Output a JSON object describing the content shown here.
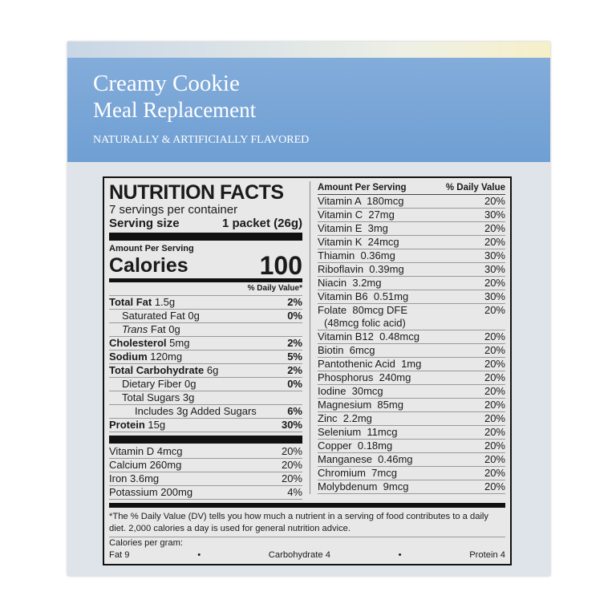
{
  "brand": {
    "line1": "Creamy Cookie",
    "line2": "Meal Replacement",
    "flavor": "NATURALLY & ARTIFICIALLY FLAVORED"
  },
  "facts": {
    "title": "NUTRITION FACTS",
    "servings": "7 servings per container",
    "serving_label": "Serving size",
    "serving_value": "1 packet (26g)",
    "amount_per_serving": "Amount Per Serving",
    "calories_label": "Calories",
    "calories_value": "100",
    "dv_header": "% Daily Value*",
    "rows": [
      {
        "label": "Total Fat",
        "amount": "1.5g",
        "dv": "2%",
        "bold": true,
        "indent": 0
      },
      {
        "label": "Saturated Fat",
        "amount": "0g",
        "dv": "0%",
        "bold": false,
        "indent": 1
      },
      {
        "label": "Trans Fat",
        "amount": "0g",
        "dv": "",
        "bold": false,
        "indent": 1
      },
      {
        "label": "Cholesterol",
        "amount": "5mg",
        "dv": "2%",
        "bold": true,
        "indent": 0
      },
      {
        "label": "Sodium",
        "amount": "120mg",
        "dv": "5%",
        "bold": true,
        "indent": 0
      },
      {
        "label": "Total Carbohydrate",
        "amount": "6g",
        "dv": "2%",
        "bold": true,
        "indent": 0
      },
      {
        "label": "Dietary Fiber",
        "amount": "0g",
        "dv": "0%",
        "bold": false,
        "indent": 1
      },
      {
        "label": "Total Sugars",
        "amount": "3g",
        "dv": "",
        "bold": false,
        "indent": 1
      },
      {
        "label": "Includes 3g Added Sugars",
        "amount": "",
        "dv": "6%",
        "bold": false,
        "indent": 2
      },
      {
        "label": "Protein",
        "amount": "15g",
        "dv": "30%",
        "bold": true,
        "indent": 0
      }
    ],
    "minerals": [
      {
        "label": "Vitamin D 4mcg",
        "dv": "20%"
      },
      {
        "label": "Calcium 260mg",
        "dv": "20%"
      },
      {
        "label": "Iron 3.6mg",
        "dv": "20%"
      },
      {
        "label": "Potassium 200mg",
        "dv": "4%"
      }
    ],
    "right_header_amount": "Amount Per Serving",
    "right_header_dv": "% Daily Value",
    "vitamins": [
      {
        "label": "Vitamin A  180mcg",
        "dv": "20%"
      },
      {
        "label": "Vitamin C  27mg",
        "dv": "30%"
      },
      {
        "label": "Vitamin E  3mg",
        "dv": "20%"
      },
      {
        "label": "Vitamin K  24mcg",
        "dv": "20%"
      },
      {
        "label": "Thiamin  0.36mg",
        "dv": "30%"
      },
      {
        "label": "Riboflavin  0.39mg",
        "dv": "30%"
      },
      {
        "label": "Niacin  3.2mg",
        "dv": "20%"
      },
      {
        "label": "Vitamin B6  0.51mg",
        "dv": "30%"
      },
      {
        "label": "Folate  80mcg DFE",
        "dv": "20%",
        "sub": "(48mcg folic acid)"
      },
      {
        "label": "Vitamin B12  0.48mcg",
        "dv": "20%"
      },
      {
        "label": "Biotin  6mcg",
        "dv": "20%"
      },
      {
        "label": "Pantothenic Acid  1mg",
        "dv": "20%"
      },
      {
        "label": "Phosphorus  240mg",
        "dv": "20%"
      },
      {
        "label": "Iodine  30mcg",
        "dv": "20%"
      },
      {
        "label": "Magnesium  85mg",
        "dv": "20%"
      },
      {
        "label": "Zinc  2.2mg",
        "dv": "20%"
      },
      {
        "label": "Selenium  11mcg",
        "dv": "20%"
      },
      {
        "label": "Copper  0.18mg",
        "dv": "20%"
      },
      {
        "label": "Manganese  0.46mg",
        "dv": "20%"
      },
      {
        "label": "Chromium  7mcg",
        "dv": "20%"
      },
      {
        "label": "Molybdenum  9mcg",
        "dv": "20%"
      }
    ],
    "footnote": "*The % Daily Value (DV) tells you how much a nutrient in a serving of food contributes to a daily diet. 2,000 calories a day is used for general nutrition advice.",
    "cal_per_gram": "Calories per gram:",
    "fat": "Fat 9",
    "carb": "Carbohydrate 4",
    "protein": "Protein 4"
  }
}
